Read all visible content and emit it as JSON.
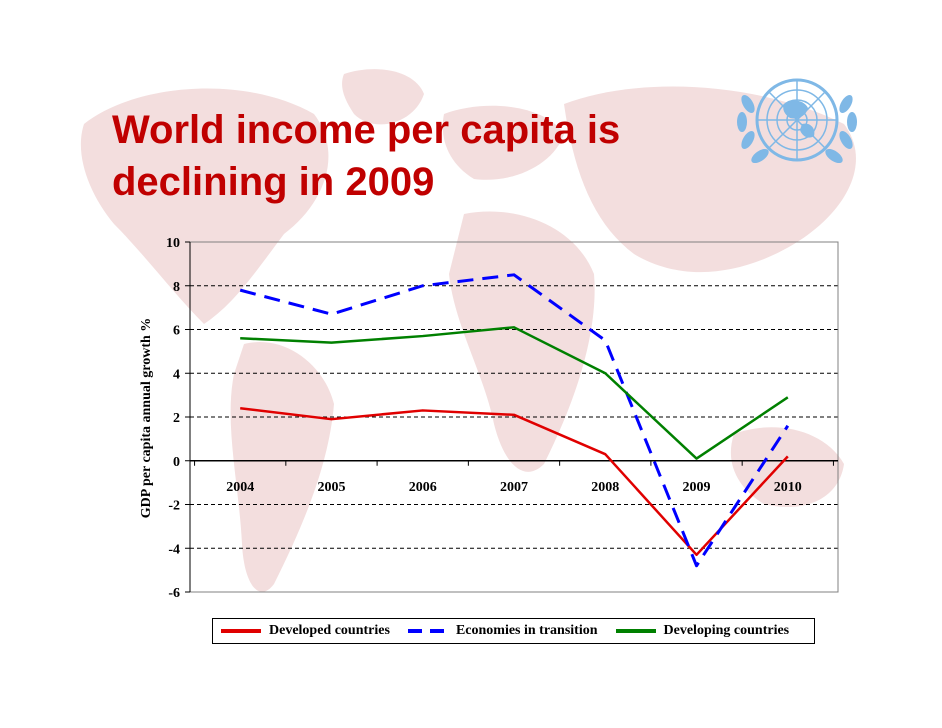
{
  "slide": {
    "title_line1": "World income per capita is",
    "title_line2": "declining in 2009",
    "title_color": "#c00000",
    "background_map_color": "#f3dede"
  },
  "emblem": {
    "icon": "un-emblem-icon",
    "color": "#7fb8e6"
  },
  "chart_data": {
    "type": "line",
    "title": "",
    "xlabel": "",
    "ylabel": "GDP per capita annual growth %",
    "categories": [
      "2004",
      "2005",
      "2006",
      "2007",
      "2008",
      "2009",
      "2010"
    ],
    "ylim": [
      -6,
      10
    ],
    "yticks": [
      -6,
      -4,
      -2,
      0,
      2,
      4,
      6,
      8,
      10
    ],
    "grid": "horizontal dashed",
    "legend_position": "bottom",
    "series": [
      {
        "name": "Developed countries",
        "color": "#e00000",
        "style": "solid",
        "values": [
          2.4,
          1.9,
          2.3,
          2.1,
          0.3,
          -4.3,
          0.2
        ]
      },
      {
        "name": "Economies in transition",
        "color": "#0000ff",
        "style": "dashed",
        "values": [
          7.8,
          6.7,
          8.0,
          8.5,
          5.5,
          -4.8,
          1.6
        ]
      },
      {
        "name": "Developing countries",
        "color": "#008000",
        "style": "solid",
        "values": [
          5.6,
          5.4,
          5.7,
          6.1,
          4.0,
          0.1,
          2.9
        ]
      }
    ]
  }
}
